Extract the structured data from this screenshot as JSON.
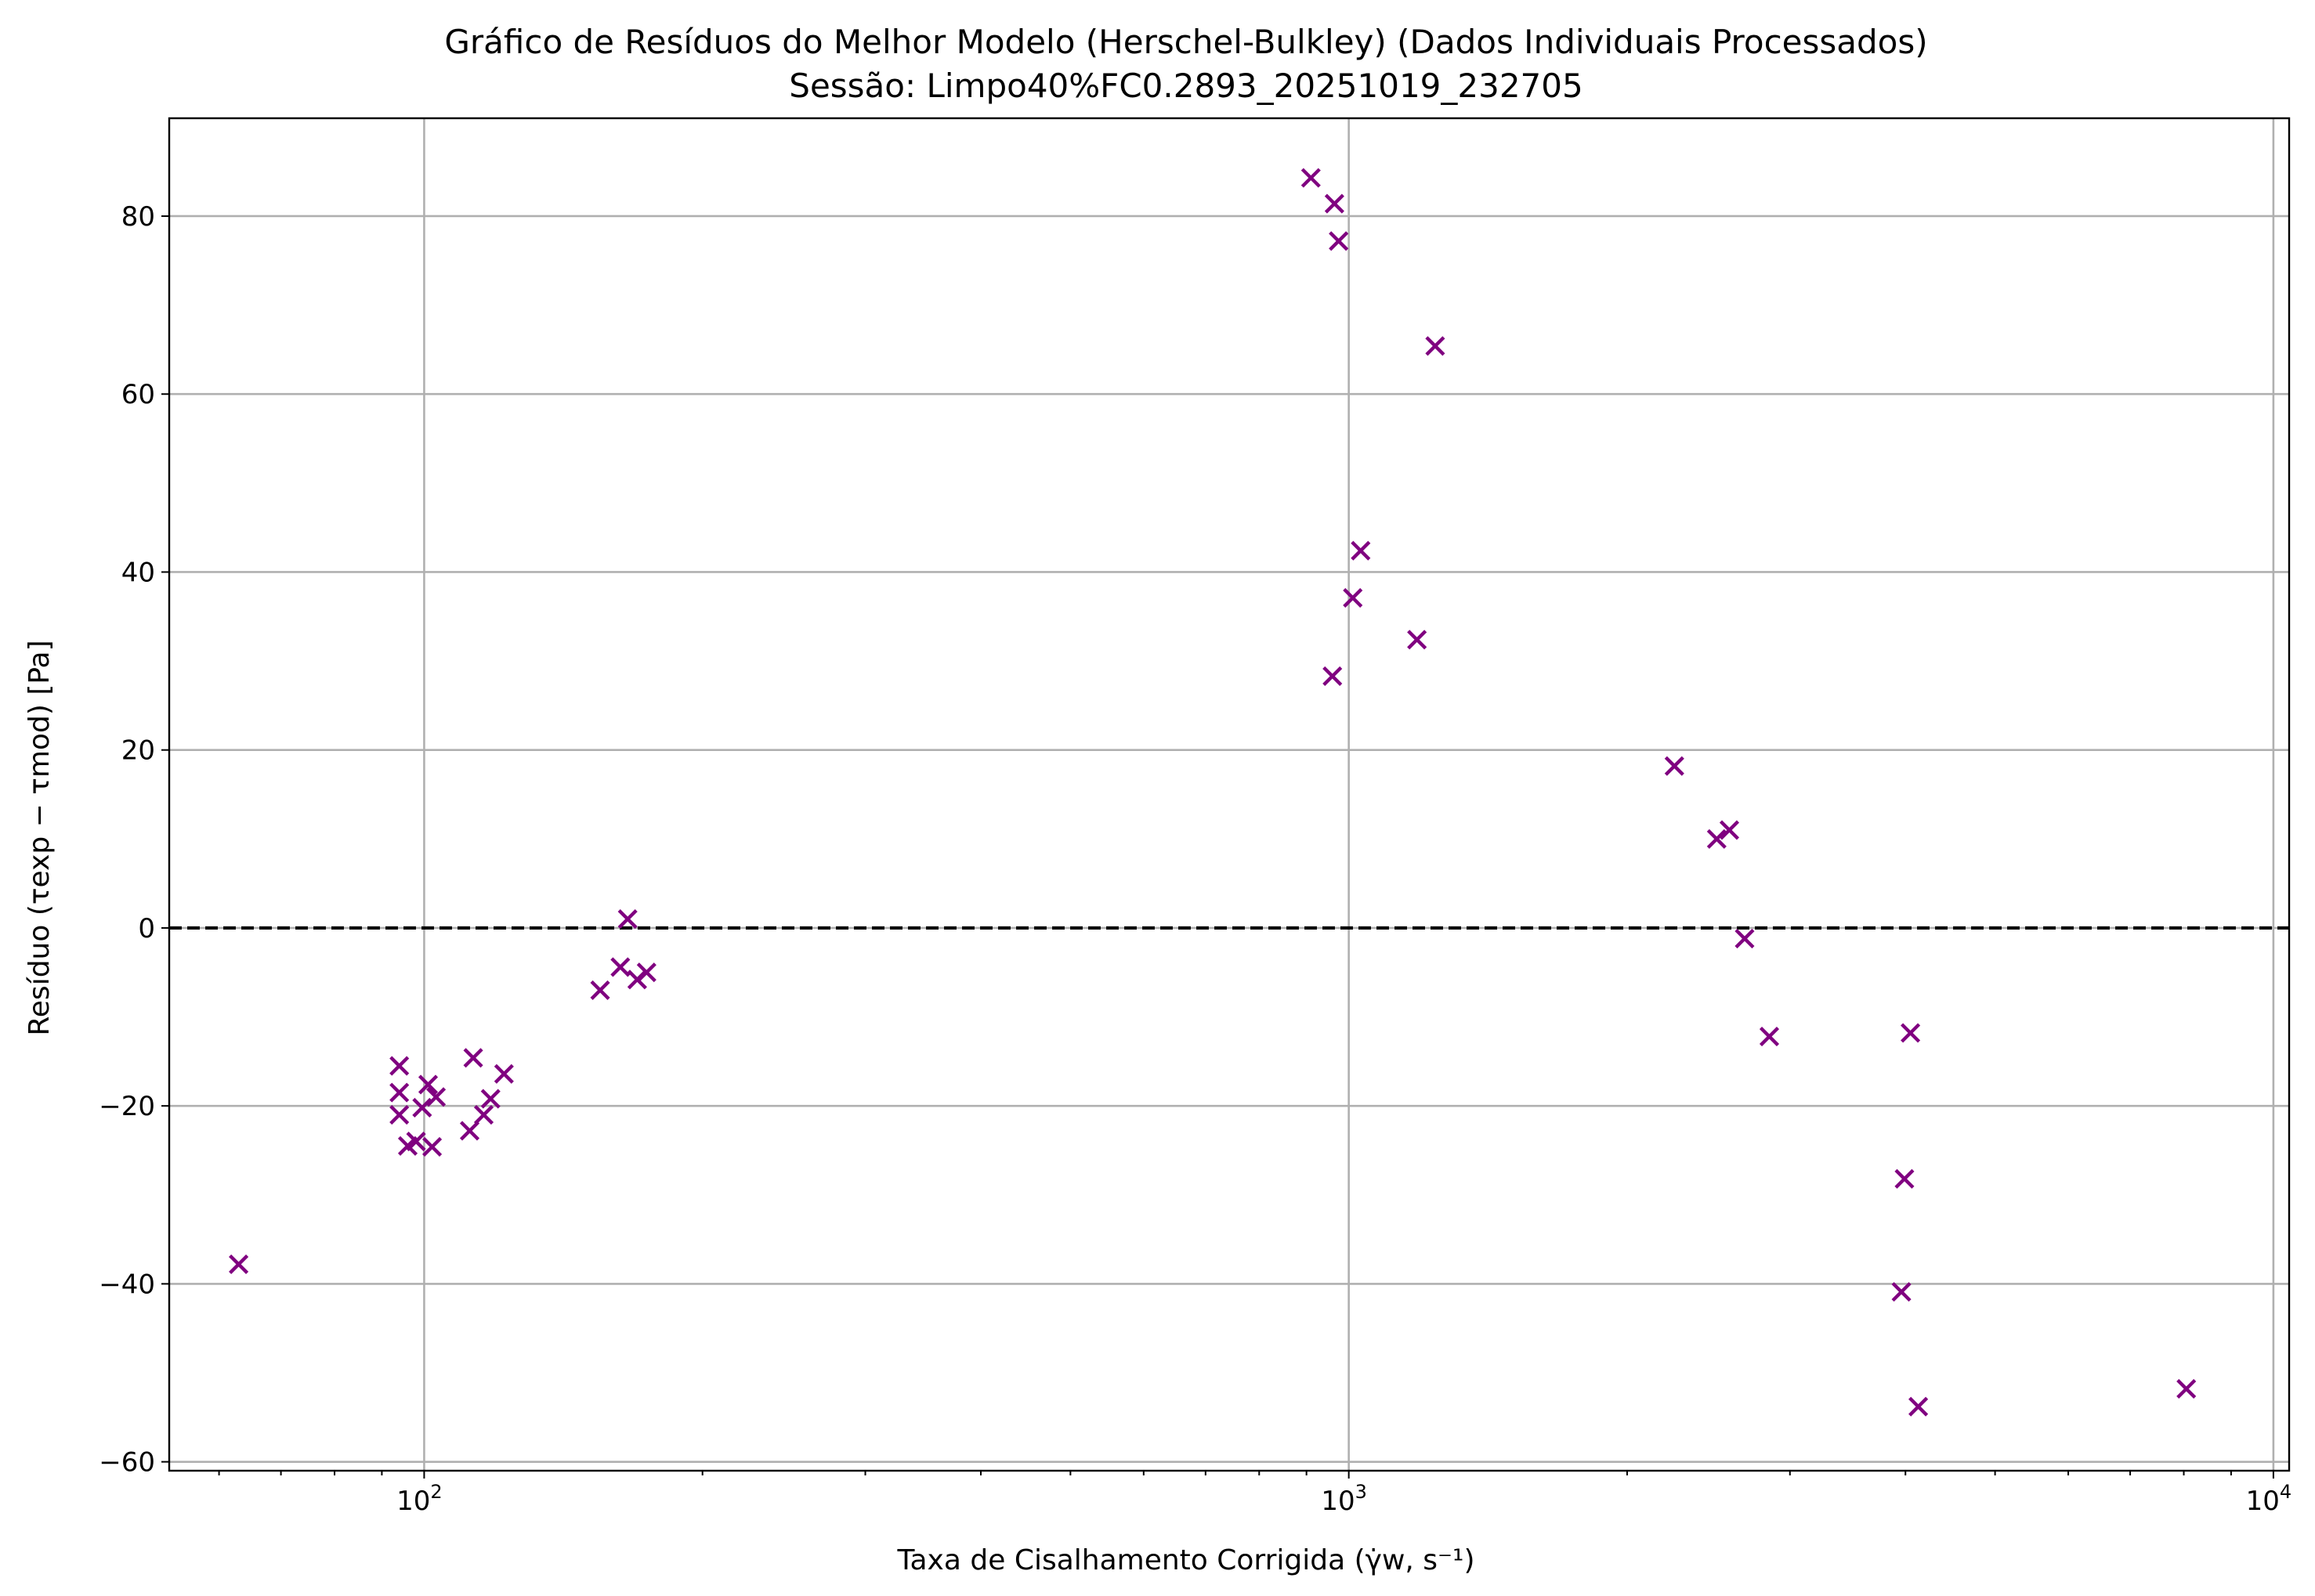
{
  "chart_data": {
    "type": "scatter",
    "title": "Gráfico de Resíduos do Melhor Modelo (Herschel-Bulkley) (Dados Individuais Processados)",
    "subtitle": "Sessão: Limpo40%FC0.2893_20251019_232705",
    "xlabel": "Taxa de Cisalhamento Corrigida (γ̇w, s⁻¹)",
    "ylabel": "Resíduo (τexp − τmod) [Pa]",
    "xscale": "log",
    "xlim": [
      53,
      10400
    ],
    "ylim": [
      -61,
      91
    ],
    "grid": true,
    "marker": "x",
    "marker_color": "#800080",
    "reference_line": {
      "y": 0,
      "style": "dashed",
      "color": "#000000"
    },
    "xticks": [
      {
        "value": 100,
        "base": "10",
        "exp": "2"
      },
      {
        "value": 1000,
        "base": "10",
        "exp": "3"
      },
      {
        "value": 10000,
        "base": "10",
        "exp": "4"
      }
    ],
    "yticks": [
      {
        "value": -60,
        "label": "−60"
      },
      {
        "value": -40,
        "label": "−40"
      },
      {
        "value": -20,
        "label": "−20"
      },
      {
        "value": 0,
        "label": "0"
      },
      {
        "value": 20,
        "label": "20"
      },
      {
        "value": 40,
        "label": "40"
      },
      {
        "value": 60,
        "label": "60"
      },
      {
        "value": 80,
        "label": "80"
      }
    ],
    "points": [
      [
        63,
        -37.8
      ],
      [
        94,
        -15.5
      ],
      [
        94,
        -18.5
      ],
      [
        94,
        -21
      ],
      [
        96,
        -24.5
      ],
      [
        98,
        -24
      ],
      [
        99.5,
        -20.2
      ],
      [
        101,
        -17.6
      ],
      [
        102,
        -24.6
      ],
      [
        103,
        -19
      ],
      [
        112,
        -22.8
      ],
      [
        113,
        -14.6
      ],
      [
        116,
        -21
      ],
      [
        118,
        -19.2
      ],
      [
        122,
        -16.4
      ],
      [
        155,
        -7
      ],
      [
        163,
        -4.4
      ],
      [
        166,
        1
      ],
      [
        170,
        -5.8
      ],
      [
        174,
        -5
      ],
      [
        910,
        84.3
      ],
      [
        965,
        81.4
      ],
      [
        975,
        77.2
      ],
      [
        960,
        28.3
      ],
      [
        1010,
        37.1
      ],
      [
        1030,
        42.4
      ],
      [
        1185,
        32.4
      ],
      [
        1240,
        65.4
      ],
      [
        2250,
        18.2
      ],
      [
        2500,
        10
      ],
      [
        2580,
        11
      ],
      [
        2680,
        -1.2
      ],
      [
        2850,
        -12.2
      ],
      [
        3960,
        -40.9
      ],
      [
        3990,
        -28.2
      ],
      [
        4050,
        -11.8
      ],
      [
        4130,
        -53.8
      ],
      [
        8050,
        -51.8
      ]
    ]
  }
}
